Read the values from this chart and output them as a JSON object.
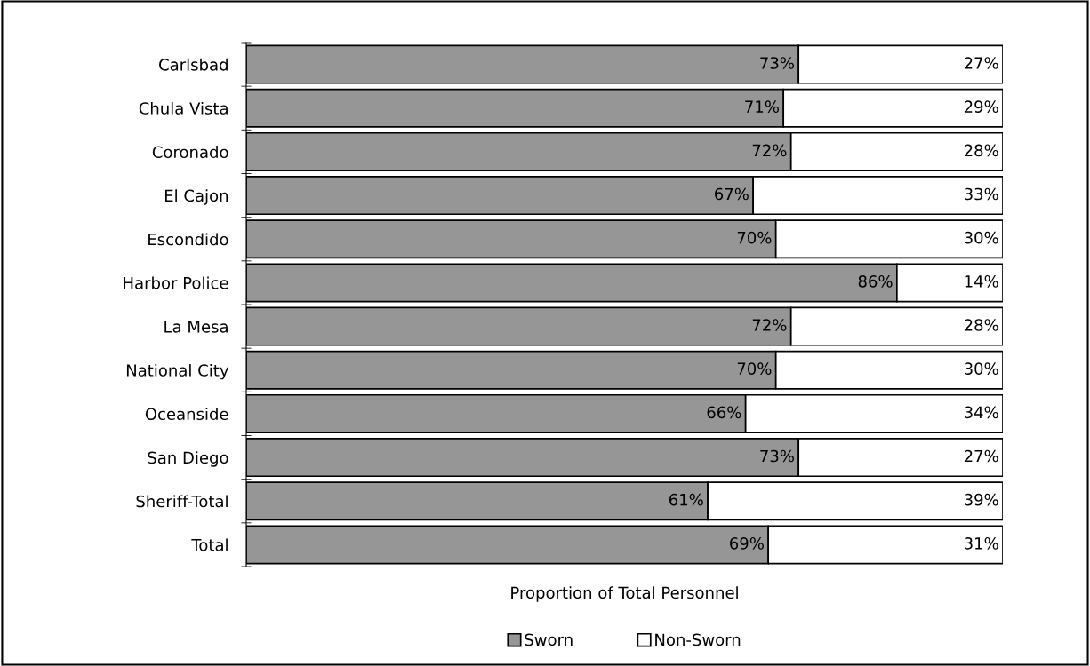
{
  "chart_data": {
    "type": "bar",
    "orientation": "horizontal",
    "stacked": true,
    "xlabel": "Proportion of Total Personnel",
    "categories": [
      "Carlsbad",
      "Chula Vista",
      "Coronado",
      "El Cajon",
      "Escondido",
      "Harbor Police",
      "La Mesa",
      "National City",
      "Oceanside",
      "San Diego",
      "Sheriff-Total",
      "Total"
    ],
    "series": [
      {
        "name": "Sworn",
        "color": "#969696",
        "values": [
          73,
          71,
          72,
          67,
          70,
          86,
          72,
          70,
          66,
          73,
          61,
          69
        ],
        "value_labels": [
          "73%",
          "71%",
          "72%",
          "67%",
          "70%",
          "86%",
          "72%",
          "70%",
          "66%",
          "73%",
          "61%",
          "69%"
        ]
      },
      {
        "name": "Non-Sworn",
        "color": "#ffffff",
        "values": [
          27,
          29,
          28,
          33,
          30,
          14,
          28,
          30,
          34,
          27,
          39,
          31
        ],
        "value_labels": [
          "27%",
          "29%",
          "28%",
          "33%",
          "30%",
          "14%",
          "28%",
          "30%",
          "34%",
          "27%",
          "39%",
          "31%"
        ]
      }
    ],
    "tick_labels": "y",
    "legend": "bottom",
    "grid": false
  }
}
